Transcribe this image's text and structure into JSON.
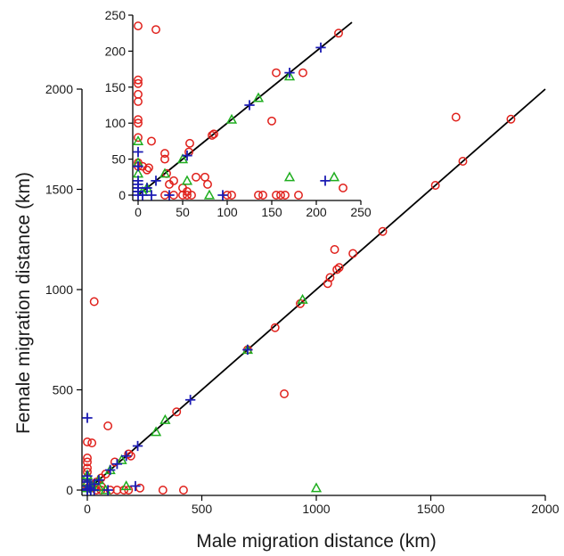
{
  "chart_data": [
    {
      "type": "scatter",
      "panel": "main",
      "xlabel": "Male migration distance (km)",
      "ylabel": "Female migration distance (km)",
      "xlim": [
        0,
        2000
      ],
      "ylim": [
        0,
        2000
      ],
      "xticks": [
        "0",
        "500",
        "1000",
        "1500",
        "2000"
      ],
      "yticks": [
        "0",
        "500",
        "1000",
        "1500",
        "2000"
      ],
      "reference_line": [
        [
          0,
          0
        ],
        [
          2000,
          2000
        ]
      ],
      "series": [
        {
          "marker": "circle",
          "color": "#e0201b",
          "points": [
            [
              1850,
              1850
            ],
            [
              1640,
              1640
            ],
            [
              1610,
              1860
            ],
            [
              1520,
              1520
            ],
            [
              1290,
              1290
            ],
            [
              1160,
              1180
            ],
            [
              1080,
              1200
            ],
            [
              1100,
              1110
            ],
            [
              1090,
              1100
            ],
            [
              1060,
              1060
            ],
            [
              1050,
              1030
            ],
            [
              930,
              930
            ],
            [
              820,
              810
            ],
            [
              860,
              480
            ],
            [
              700,
              700
            ],
            [
              390,
              390
            ],
            [
              30,
              940
            ],
            [
              180,
              180
            ],
            [
              190,
              170
            ],
            [
              120,
              140
            ],
            [
              80,
              80
            ],
            [
              60,
              60
            ],
            [
              40,
              40
            ],
            [
              20,
              20
            ],
            [
              10,
              10
            ],
            [
              90,
              320
            ],
            [
              0,
              240
            ],
            [
              20,
              235
            ],
            [
              0,
              160
            ],
            [
              0,
              140
            ],
            [
              0,
              110
            ],
            [
              0,
              90
            ],
            [
              0,
              60
            ],
            [
              0,
              30
            ],
            [
              0,
              10
            ],
            [
              40,
              0
            ],
            [
              60,
              0
            ],
            [
              100,
              0
            ],
            [
              130,
              0
            ],
            [
              160,
              0
            ],
            [
              180,
              0
            ],
            [
              330,
              0
            ],
            [
              420,
              0
            ],
            [
              230,
              10
            ],
            [
              60,
              20
            ]
          ]
        },
        {
          "marker": "triangle",
          "color": "#1fae1f",
          "points": [
            [
              940,
              950
            ],
            [
              700,
              700
            ],
            [
              340,
              350
            ],
            [
              300,
              290
            ],
            [
              150,
              150
            ],
            [
              100,
              100
            ],
            [
              50,
              50
            ],
            [
              20,
              20
            ],
            [
              0,
              10
            ],
            [
              170,
              20
            ],
            [
              1000,
              10
            ],
            [
              0,
              75
            ],
            [
              0,
              40
            ],
            [
              10,
              30
            ],
            [
              50,
              15
            ],
            [
              80,
              0
            ]
          ]
        },
        {
          "marker": "plus",
          "color": "#1c1cb3",
          "points": [
            [
              450,
              450
            ],
            [
              700,
              700
            ],
            [
              220,
              220
            ],
            [
              170,
              170
            ],
            [
              130,
              130
            ],
            [
              100,
              100
            ],
            [
              50,
              50
            ],
            [
              30,
              30
            ],
            [
              10,
              10
            ],
            [
              0,
              0
            ],
            [
              0,
              360
            ],
            [
              0,
              70
            ],
            [
              0,
              50
            ],
            [
              0,
              40
            ],
            [
              0,
              20
            ],
            [
              0,
              5
            ],
            [
              15,
              0
            ],
            [
              30,
              0
            ],
            [
              90,
              0
            ],
            [
              210,
              20
            ]
          ]
        }
      ]
    },
    {
      "type": "scatter",
      "panel": "inset",
      "xlabel": "",
      "ylabel": "",
      "xlim": [
        0,
        250
      ],
      "ylim": [
        0,
        250
      ],
      "xticks": [
        "0",
        "50",
        "100",
        "150",
        "200",
        "250"
      ],
      "yticks": [
        "0",
        "50",
        "100",
        "150",
        "200",
        "250"
      ],
      "reference_line": [
        [
          0,
          0
        ],
        [
          240,
          240
        ]
      ],
      "series": [
        {
          "marker": "circle",
          "color": "#e0201b",
          "points": [
            [
              225,
              225
            ],
            [
              185,
              170
            ],
            [
              155,
              170
            ],
            [
              150,
              103
            ],
            [
              85,
              85
            ],
            [
              83,
              83
            ],
            [
              58,
              72
            ],
            [
              57,
              60
            ],
            [
              30,
              58
            ],
            [
              30,
              50
            ],
            [
              12,
              38
            ],
            [
              10,
              35
            ],
            [
              5,
              40
            ],
            [
              0,
              45
            ],
            [
              0,
              40
            ],
            [
              0,
              80
            ],
            [
              15,
              75
            ],
            [
              0,
              100
            ],
            [
              0,
              105
            ],
            [
              0,
              130
            ],
            [
              0,
              140
            ],
            [
              0,
              155
            ],
            [
              0,
              160
            ],
            [
              0,
              235
            ],
            [
              20,
              230
            ],
            [
              32,
              30
            ],
            [
              35,
              15
            ],
            [
              40,
              20
            ],
            [
              50,
              10
            ],
            [
              30,
              0
            ],
            [
              40,
              0
            ],
            [
              50,
              0
            ],
            [
              55,
              0
            ],
            [
              60,
              0
            ],
            [
              100,
              0
            ],
            [
              105,
              0
            ],
            [
              135,
              0
            ],
            [
              140,
              0
            ],
            [
              155,
              0
            ],
            [
              160,
              0
            ],
            [
              165,
              0
            ],
            [
              180,
              0
            ],
            [
              230,
              10
            ],
            [
              65,
              25
            ],
            [
              75,
              25
            ],
            [
              78,
              15
            ],
            [
              55,
              5
            ]
          ]
        },
        {
          "marker": "triangle",
          "color": "#1fae1f",
          "points": [
            [
              170,
              165
            ],
            [
              135,
              135
            ],
            [
              105,
              105
            ],
            [
              50,
              50
            ],
            [
              30,
              30
            ],
            [
              10,
              10
            ],
            [
              0,
              75
            ],
            [
              0,
              45
            ],
            [
              0,
              30
            ],
            [
              55,
              20
            ],
            [
              170,
              25
            ],
            [
              220,
              25
            ],
            [
              80,
              0
            ],
            [
              5,
              5
            ]
          ]
        },
        {
          "marker": "plus",
          "color": "#1c1cb3",
          "points": [
            [
              205,
              205
            ],
            [
              170,
              170
            ],
            [
              125,
              125
            ],
            [
              55,
              55
            ],
            [
              20,
              20
            ],
            [
              10,
              10
            ],
            [
              0,
              0
            ],
            [
              0,
              60
            ],
            [
              0,
              40
            ],
            [
              0,
              20
            ],
            [
              0,
              10
            ],
            [
              0,
              5
            ],
            [
              5,
              0
            ],
            [
              15,
              0
            ],
            [
              35,
              0
            ],
            [
              95,
              0
            ],
            [
              210,
              20
            ],
            [
              0,
              15
            ]
          ]
        }
      ]
    }
  ]
}
